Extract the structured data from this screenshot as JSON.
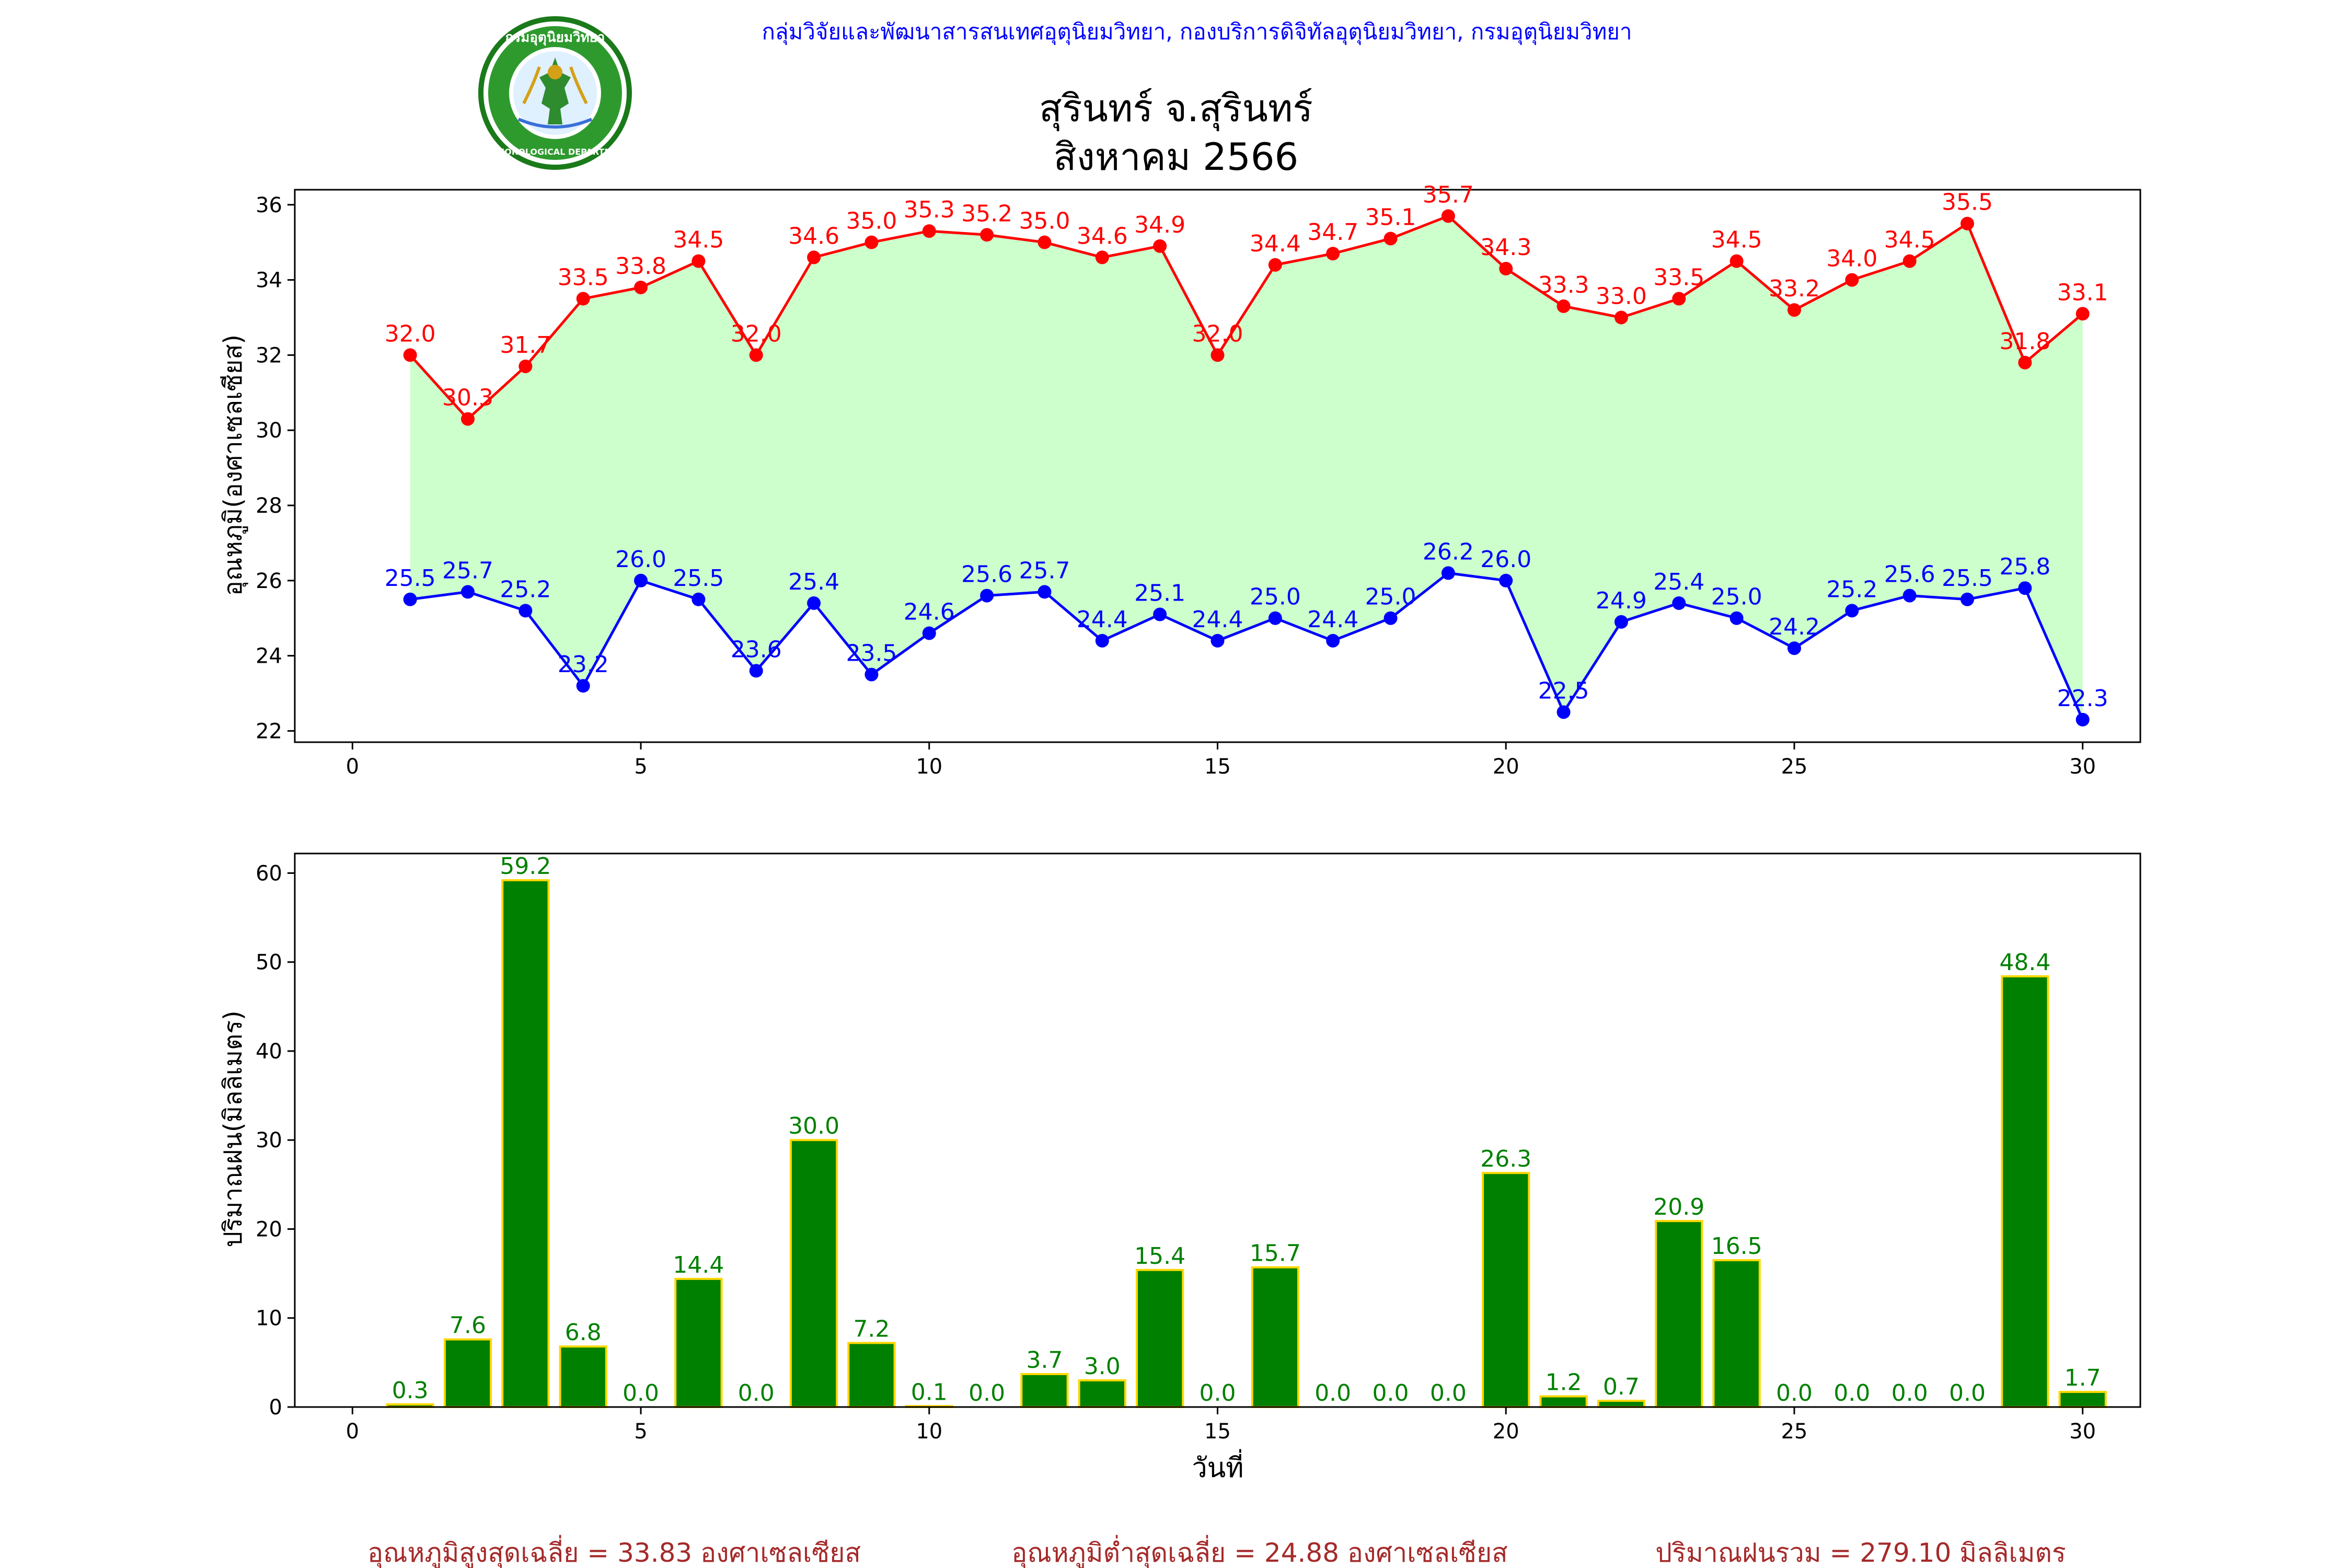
{
  "header": {
    "department_line": "กลุ่มวิจัยและพัฒนาสารสนเทศอุตุนิยมวิทยา, กองบริการดิจิทัลอุตุนิยมวิทยา, กรมอุตุนิยมวิทยา",
    "title_line1": "สุรินทร์ จ.สุรินทร์",
    "title_line2": "สิงหาคม 2566",
    "logo_text_top": "กรมอุตุนิยมวิทยา",
    "logo_text_bottom": "METEOROLOGICAL DEPARTMENT"
  },
  "colors": {
    "max_line": "#ff0000",
    "min_line": "#0000ff",
    "fill": "#ccffcc",
    "bar": "#008000",
    "bar_edge": "#ffd700",
    "bar_label": "#008000",
    "footer": "#a52a2a",
    "header": "#0000ff"
  },
  "chart_data": [
    {
      "type": "line",
      "ylabel": "อุณหภูมิ(องศาเซลเซียส)",
      "xlabel": "",
      "xlim": [
        -1,
        31
      ],
      "ylim": [
        21.7,
        36.4
      ],
      "xticks": [
        0,
        5,
        10,
        15,
        20,
        25,
        30
      ],
      "yticks": [
        22,
        24,
        26,
        28,
        30,
        32,
        34,
        36
      ],
      "fill_between": true,
      "x": [
        1,
        2,
        3,
        4,
        5,
        6,
        7,
        8,
        9,
        10,
        11,
        12,
        13,
        14,
        15,
        16,
        17,
        18,
        19,
        20,
        21,
        22,
        23,
        24,
        25,
        26,
        27,
        28,
        29,
        30
      ],
      "series": [
        {
          "key": "max",
          "values": [
            32.0,
            30.3,
            31.7,
            33.5,
            33.8,
            34.5,
            32.0,
            34.6,
            35.0,
            35.3,
            35.2,
            35.0,
            34.6,
            34.9,
            32.0,
            34.4,
            34.7,
            35.1,
            35.7,
            34.3,
            33.3,
            33.0,
            33.5,
            34.5,
            33.2,
            34.0,
            34.5,
            35.5,
            31.8,
            33.1
          ]
        },
        {
          "key": "min",
          "values": [
            25.5,
            25.7,
            25.2,
            23.2,
            26.0,
            25.5,
            23.6,
            25.4,
            23.5,
            24.6,
            25.6,
            25.7,
            24.4,
            25.1,
            24.4,
            25.0,
            24.4,
            25.0,
            26.2,
            26.0,
            22.5,
            24.9,
            25.4,
            25.0,
            24.2,
            25.2,
            25.6,
            25.5,
            25.8,
            22.3
          ]
        }
      ]
    },
    {
      "type": "bar",
      "ylabel": "ปริมาณฝน(มิลลิเมตร)",
      "xlabel": "วันที่",
      "xlim": [
        -1,
        31
      ],
      "ylim": [
        0,
        62.2
      ],
      "xticks": [
        0,
        5,
        10,
        15,
        20,
        25,
        30
      ],
      "yticks": [
        0,
        10,
        20,
        30,
        40,
        50,
        60
      ],
      "x": [
        1,
        2,
        3,
        4,
        5,
        6,
        7,
        8,
        9,
        10,
        11,
        12,
        13,
        14,
        15,
        16,
        17,
        18,
        19,
        20,
        21,
        22,
        23,
        24,
        25,
        26,
        27,
        28,
        29,
        30
      ],
      "values": [
        0.3,
        7.6,
        59.2,
        6.8,
        0.0,
        14.4,
        0.0,
        30.0,
        7.2,
        0.1,
        0.0,
        3.7,
        3.0,
        15.4,
        0.0,
        15.7,
        0.0,
        0.0,
        0.0,
        26.3,
        1.2,
        0.7,
        20.9,
        16.5,
        0.0,
        0.0,
        0.0,
        0.0,
        48.4,
        1.7
      ]
    }
  ],
  "footer": {
    "avg_max": "อุณหภูมิสูงสุดเฉลี่ย = 33.83 องศาเซลเซียส",
    "avg_min": "อุณหภูมิต่ำสุดเฉลี่ย = 24.88 องศาเซลเซียส",
    "total_rain": "ปริมาณฝนรวม = 279.10 มิลลิเมตร"
  }
}
